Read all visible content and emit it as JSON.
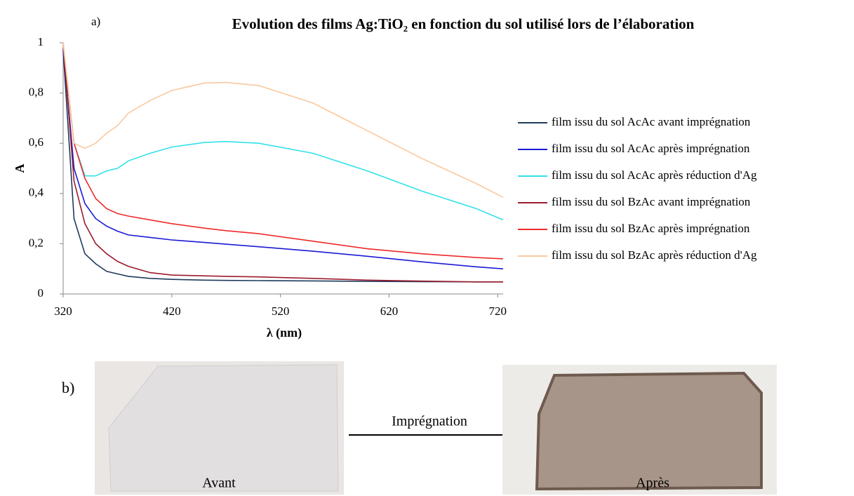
{
  "panel_a": "a)",
  "chart_data": {
    "type": "line",
    "title": "Evolution des films Ag:TiO₂ en fonction du sol utilisé lors de l’élaboration",
    "x_label": "λ (nm)",
    "y_label": "A",
    "x": [
      320,
      330,
      340,
      350,
      360,
      370,
      380,
      400,
      420,
      450,
      470,
      500,
      550,
      600,
      650,
      700,
      725
    ],
    "xlim": [
      320,
      725
    ],
    "xticks": [
      320,
      420,
      520,
      620,
      720
    ],
    "ylim": [
      0,
      1
    ],
    "yticks": [
      0,
      {
        "value": 0.2,
        "label": "0,2"
      },
      {
        "value": 0.4,
        "label": "0,4"
      },
      {
        "value": 0.6,
        "label": "0,6"
      },
      {
        "value": 0.8,
        "label": "0,8"
      },
      1
    ],
    "grid": false,
    "legend": "right",
    "series": [
      {
        "name": "film issu du sol AcAc avant imprégnation",
        "color": "#1f3b5c",
        "values": [
          0.97,
          0.3,
          0.16,
          0.12,
          0.09,
          0.08,
          0.07,
          0.062,
          0.058,
          0.055,
          0.054,
          0.053,
          0.052,
          0.05,
          0.049,
          0.048,
          0.048
        ]
      },
      {
        "name": "film issu du sol AcAc après imprégnation",
        "color": "#1a1ad6",
        "values": [
          0.98,
          0.5,
          0.36,
          0.3,
          0.27,
          0.25,
          0.235,
          0.225,
          0.215,
          0.205,
          0.198,
          0.188,
          0.17,
          0.15,
          0.128,
          0.108,
          0.1
        ]
      },
      {
        "name": "film issu du sol AcAc après réduction d'Ag",
        "color": "#33e0ea",
        "values": [
          1.0,
          0.6,
          0.47,
          0.47,
          0.49,
          0.5,
          0.53,
          0.56,
          0.585,
          0.603,
          0.607,
          0.6,
          0.56,
          0.49,
          0.41,
          0.34,
          0.295
        ]
      },
      {
        "name": "film issu du sol BzAc avant imprégnation",
        "color": "#9b1b2e",
        "values": [
          1.0,
          0.45,
          0.28,
          0.2,
          0.16,
          0.13,
          0.11,
          0.085,
          0.075,
          0.072,
          0.07,
          0.068,
          0.062,
          0.055,
          0.051,
          0.048,
          0.048
        ]
      },
      {
        "name": "film issu du sol BzAc après imprégnation",
        "color": "#ee2a2a",
        "values": [
          0.99,
          0.6,
          0.46,
          0.38,
          0.34,
          0.32,
          0.31,
          0.295,
          0.28,
          0.262,
          0.252,
          0.24,
          0.21,
          0.18,
          0.16,
          0.145,
          0.14
        ]
      },
      {
        "name": "film issu du sol BzAc après réduction d'Ag",
        "color": "#f9c9a0",
        "values": [
          1.0,
          0.6,
          0.58,
          0.6,
          0.64,
          0.67,
          0.72,
          0.77,
          0.81,
          0.84,
          0.842,
          0.83,
          0.76,
          0.65,
          0.54,
          0.44,
          0.385
        ]
      }
    ]
  },
  "photos": {
    "label": "b)",
    "before": "Avant",
    "arrow": "Imprégnation",
    "after": "Après"
  }
}
